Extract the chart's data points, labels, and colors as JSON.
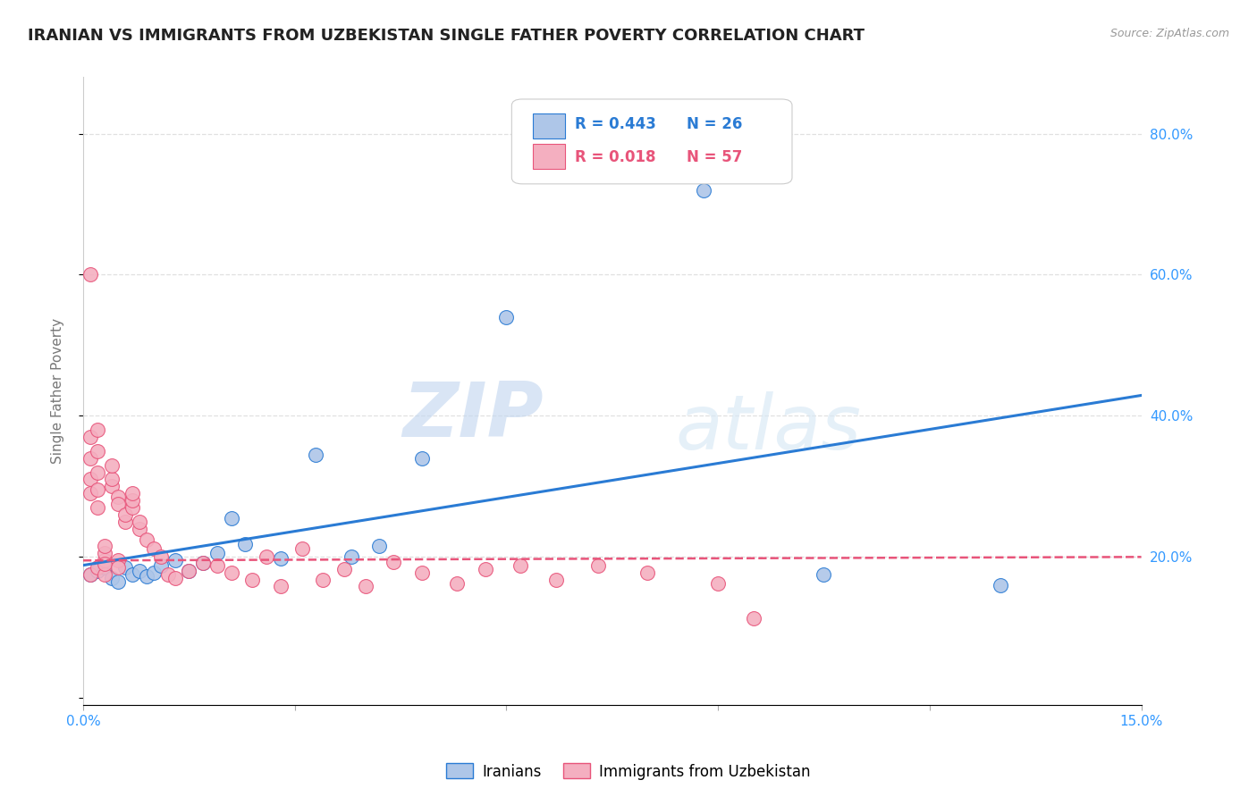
{
  "title": "IRANIAN VS IMMIGRANTS FROM UZBEKISTAN SINGLE FATHER POVERTY CORRELATION CHART",
  "source": "Source: ZipAtlas.com",
  "ylabel": "Single Father Poverty",
  "x_min": 0.0,
  "x_max": 0.15,
  "y_min": -0.01,
  "y_max": 0.88,
  "iranian_color": "#aec6e8",
  "uzbek_color": "#f4afc0",
  "iranian_line_color": "#2a7bd4",
  "uzbek_line_color": "#e8547a",
  "R_iranian": 0.443,
  "N_iranian": 26,
  "R_uzbek": 0.018,
  "N_uzbek": 57,
  "watermark_zip": "ZIP",
  "watermark_atlas": "atlas",
  "bg_color": "#ffffff",
  "grid_color": "#e0e0e0",
  "title_fontsize": 13,
  "axis_label_fontsize": 11,
  "iranians_x": [
    0.001,
    0.002,
    0.003,
    0.004,
    0.005,
    0.006,
    0.007,
    0.008,
    0.009,
    0.01,
    0.011,
    0.013,
    0.015,
    0.017,
    0.019,
    0.021,
    0.023,
    0.028,
    0.033,
    0.038,
    0.042,
    0.048,
    0.06,
    0.088,
    0.105,
    0.13
  ],
  "iranians_y": [
    0.175,
    0.18,
    0.185,
    0.17,
    0.165,
    0.185,
    0.175,
    0.18,
    0.172,
    0.178,
    0.188,
    0.195,
    0.18,
    0.192,
    0.205,
    0.255,
    0.218,
    0.198,
    0.345,
    0.2,
    0.215,
    0.34,
    0.54,
    0.72,
    0.175,
    0.16
  ],
  "uzbek_x": [
    0.001,
    0.001,
    0.001,
    0.001,
    0.001,
    0.001,
    0.002,
    0.002,
    0.002,
    0.002,
    0.002,
    0.002,
    0.003,
    0.003,
    0.003,
    0.003,
    0.003,
    0.004,
    0.004,
    0.004,
    0.005,
    0.005,
    0.005,
    0.005,
    0.006,
    0.006,
    0.007,
    0.007,
    0.007,
    0.008,
    0.008,
    0.009,
    0.01,
    0.011,
    0.012,
    0.013,
    0.015,
    0.017,
    0.019,
    0.021,
    0.024,
    0.026,
    0.028,
    0.031,
    0.034,
    0.037,
    0.04,
    0.044,
    0.048,
    0.053,
    0.057,
    0.062,
    0.067,
    0.073,
    0.08,
    0.09,
    0.095
  ],
  "uzbek_y": [
    0.6,
    0.37,
    0.34,
    0.31,
    0.29,
    0.175,
    0.38,
    0.35,
    0.32,
    0.295,
    0.27,
    0.185,
    0.175,
    0.195,
    0.205,
    0.215,
    0.19,
    0.3,
    0.31,
    0.33,
    0.285,
    0.275,
    0.195,
    0.185,
    0.25,
    0.26,
    0.27,
    0.28,
    0.29,
    0.24,
    0.25,
    0.225,
    0.212,
    0.2,
    0.175,
    0.17,
    0.18,
    0.192,
    0.188,
    0.178,
    0.168,
    0.2,
    0.158,
    0.212,
    0.168,
    0.183,
    0.158,
    0.193,
    0.178,
    0.163,
    0.183,
    0.188,
    0.168,
    0.188,
    0.178,
    0.163,
    0.113
  ]
}
